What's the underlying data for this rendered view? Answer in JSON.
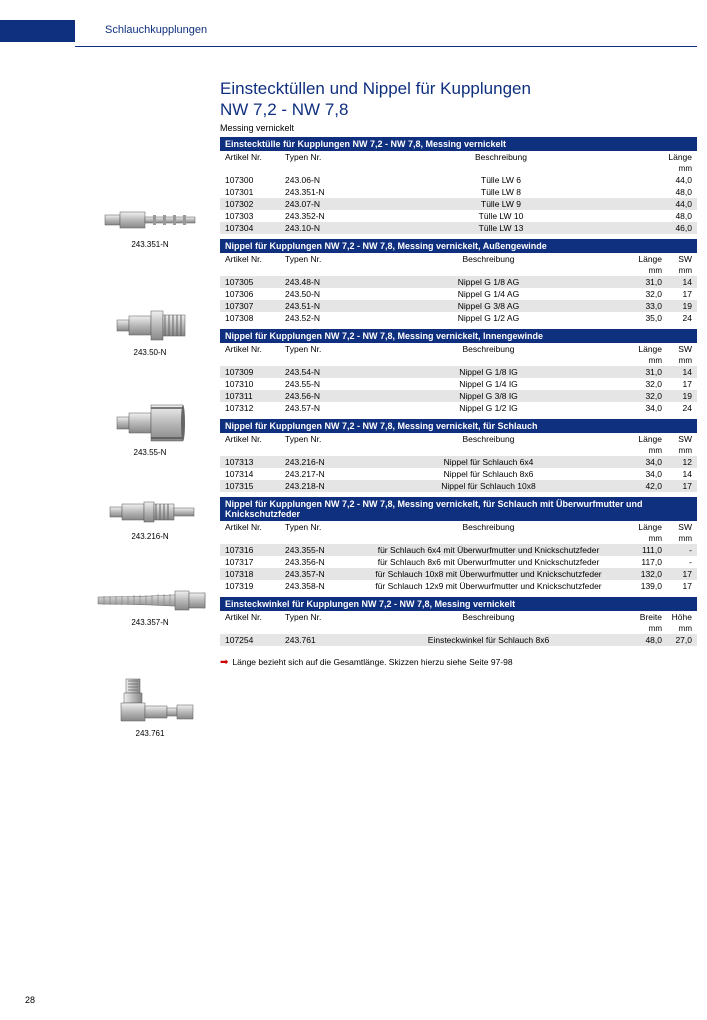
{
  "header": {
    "category": "Schlauchkupplungen"
  },
  "title_l1": "Einstecktüllen und Nippel für Kupplungen",
  "title_l2": "NW 7,2 - NW 7,8",
  "subtitle": "Messing vernickelt",
  "page_number": "28",
  "note": "Länge bezieht sich auf die Gesamtlänge. Skizzen hierzu siehe Seite 97-98",
  "layout": {
    "grid_5col": "60px 70px 1fr 40px 30px",
    "grid_4col": "60px 70px 1fr 45px"
  },
  "sections": [
    {
      "id": "s1",
      "head": "Einstecktülle für Kupplungen NW 7,2 - NW 7,8, Messing vernickelt",
      "image_caption": "243.351-N",
      "cols": [
        "Artikel Nr.",
        "Typen Nr.",
        "Beschreibung",
        "Länge"
      ],
      "units": [
        "",
        "",
        "",
        "mm"
      ],
      "grid": "grid_4col",
      "rows": [
        {
          "stripe": false,
          "c": [
            "107300",
            "243.06-N",
            "Tülle LW 6",
            "44,0"
          ]
        },
        {
          "stripe": false,
          "c": [
            "107301",
            "243.351-N",
            "Tülle LW 8",
            "48,0"
          ]
        },
        {
          "stripe": true,
          "c": [
            "107302",
            "243.07-N",
            "Tülle LW 9",
            "44,0"
          ]
        },
        {
          "stripe": false,
          "c": [
            "107303",
            "243.352-N",
            "Tülle LW 10",
            "48,0"
          ]
        },
        {
          "stripe": true,
          "c": [
            "107304",
            "243.10-N",
            "Tülle LW 13",
            "46,0"
          ]
        }
      ]
    },
    {
      "id": "s2",
      "head": "Nippel für Kupplungen NW 7,2 - NW 7,8, Messing vernickelt, Außengewinde",
      "image_caption": "243.50-N",
      "cols": [
        "Artikel Nr.",
        "Typen Nr.",
        "Beschreibung",
        "Länge",
        "SW"
      ],
      "units": [
        "",
        "",
        "",
        "mm",
        "mm"
      ],
      "grid": "grid_5col",
      "rows": [
        {
          "stripe": true,
          "c": [
            "107305",
            "243.48-N",
            "Nippel G 1/8 AG",
            "31,0",
            "14"
          ]
        },
        {
          "stripe": false,
          "c": [
            "107306",
            "243.50-N",
            "Nippel G 1/4 AG",
            "32,0",
            "17"
          ]
        },
        {
          "stripe": true,
          "c": [
            "107307",
            "243.51-N",
            "Nippel G 3/8 AG",
            "33,0",
            "19"
          ]
        },
        {
          "stripe": false,
          "c": [
            "107308",
            "243.52-N",
            "Nippel G 1/2 AG",
            "35,0",
            "24"
          ]
        }
      ]
    },
    {
      "id": "s3",
      "head": "Nippel für Kupplungen NW 7,2 - NW 7,8, Messing vernickelt, Innengewinde",
      "image_caption": "243.55-N",
      "cols": [
        "Artikel Nr.",
        "Typen Nr.",
        "Beschreibung",
        "Länge",
        "SW"
      ],
      "units": [
        "",
        "",
        "",
        "mm",
        "mm"
      ],
      "grid": "grid_5col",
      "rows": [
        {
          "stripe": true,
          "c": [
            "107309",
            "243.54-N",
            "Nippel G 1/8 IG",
            "31,0",
            "14"
          ]
        },
        {
          "stripe": false,
          "c": [
            "107310",
            "243.55-N",
            "Nippel G 1/4 IG",
            "32,0",
            "17"
          ]
        },
        {
          "stripe": true,
          "c": [
            "107311",
            "243.56-N",
            "Nippel G 3/8 IG",
            "32,0",
            "19"
          ]
        },
        {
          "stripe": false,
          "c": [
            "107312",
            "243.57-N",
            "Nippel G 1/2 IG",
            "34,0",
            "24"
          ]
        }
      ]
    },
    {
      "id": "s4",
      "head": "Nippel für Kupplungen NW 7,2 - NW 7,8, Messing vernickelt, für Schlauch",
      "image_caption": "243.216-N",
      "cols": [
        "Artikel Nr.",
        "Typen Nr.",
        "Beschreibung",
        "Länge",
        "SW"
      ],
      "units": [
        "",
        "",
        "",
        "mm",
        "mm"
      ],
      "grid": "grid_5col",
      "rows": [
        {
          "stripe": true,
          "c": [
            "107313",
            "243.216-N",
            "Nippel für Schlauch 6x4",
            "34,0",
            "12"
          ]
        },
        {
          "stripe": false,
          "c": [
            "107314",
            "243.217-N",
            "Nippel für Schlauch 8x6",
            "34,0",
            "14"
          ]
        },
        {
          "stripe": true,
          "c": [
            "107315",
            "243.218-N",
            "Nippel für Schlauch 10x8",
            "42,0",
            "17"
          ]
        }
      ]
    },
    {
      "id": "s5",
      "head": "Nippel für Kupplungen NW 7,2 - NW 7,8, Messing vernickelt, für Schlauch mit Überwurfmutter und Knickschutzfeder",
      "image_caption": "243.357-N",
      "cols": [
        "Artikel Nr.",
        "Typen Nr.",
        "Beschreibung",
        "Länge",
        "SW"
      ],
      "units": [
        "",
        "",
        "",
        "mm",
        "mm"
      ],
      "grid": "grid_5col",
      "rows": [
        {
          "stripe": true,
          "c": [
            "107316",
            "243.355-N",
            "für Schlauch 6x4 mit Überwurfmutter und Knickschutzfeder",
            "111,0",
            "-"
          ]
        },
        {
          "stripe": false,
          "c": [
            "107317",
            "243.356-N",
            "für Schlauch 8x6 mit Überwurfmutter und Knickschutzfeder",
            "117,0",
            "-"
          ]
        },
        {
          "stripe": true,
          "c": [
            "107318",
            "243.357-N",
            "für Schlauch 10x8 mit Überwurfmutter und Knickschutzfeder",
            "132,0",
            "17"
          ]
        },
        {
          "stripe": false,
          "c": [
            "107319",
            "243.358-N",
            "für Schlauch 12x9 mit Überwurfmutter und Knickschutzfeder",
            "139,0",
            "17"
          ]
        }
      ]
    },
    {
      "id": "s6",
      "head": "Einsteckwinkel für Kupplungen NW 7,2 - NW 7,8, Messing vernickelt",
      "image_caption": "243.761",
      "cols": [
        "Artikel Nr.",
        "Typen Nr.",
        "Beschreibung",
        "Breite",
        "Höhe"
      ],
      "units": [
        "",
        "",
        "",
        "mm",
        "mm"
      ],
      "grid": "grid_5col",
      "rows": [
        {
          "stripe": true,
          "c": [
            "107254",
            "243.761",
            "Einsteckwinkel für Schlauch 8x6",
            "48,0",
            "27,0"
          ]
        }
      ]
    }
  ],
  "image_offsets": [
    122,
    225,
    320,
    414,
    505,
    596
  ]
}
